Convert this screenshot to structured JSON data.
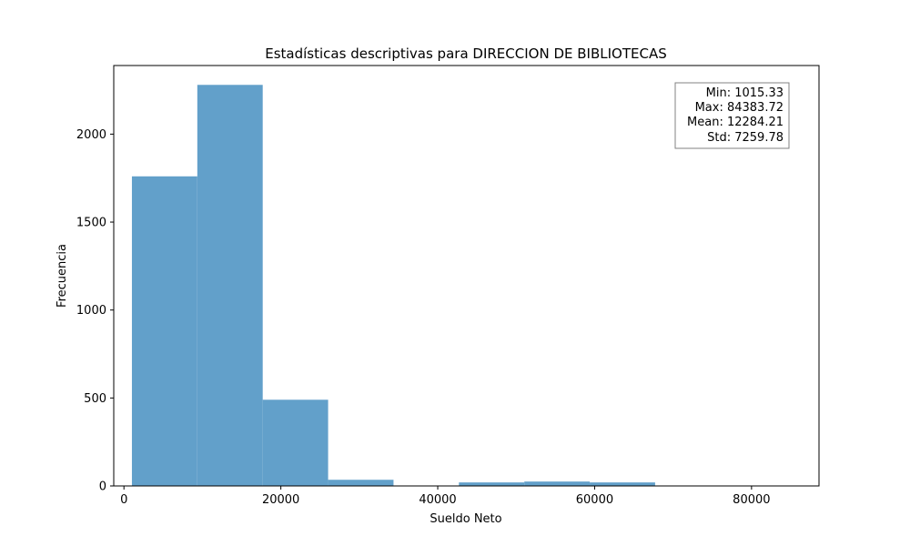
{
  "chart_data": {
    "type": "bar",
    "title": "Estadísticas descriptivas para DIRECCION DE BIBLIOTECAS",
    "xlabel": "Sueldo Neto",
    "ylabel": "Frecuencia",
    "xlim": [
      -1300,
      88600
    ],
    "ylim": [
      0,
      2390
    ],
    "xticks": [
      0,
      20000,
      40000,
      60000,
      80000
    ],
    "xtick_labels": [
      "0",
      "20000",
      "40000",
      "60000",
      "80000"
    ],
    "yticks": [
      0,
      500,
      1000,
      1500,
      2000
    ],
    "ytick_labels": [
      "0",
      "500",
      "1000",
      "1500",
      "2000"
    ],
    "bin_edges": [
      1015.33,
      9352.17,
      17689.01,
      26025.85,
      34362.69,
      42699.53,
      51036.37,
      59373.21,
      67710.05,
      76046.88,
      84383.72
    ],
    "values": [
      1760,
      2280,
      490,
      35,
      0,
      20,
      25,
      20,
      0,
      2
    ],
    "color": "#62a0ca",
    "grid": false,
    "stats_box": {
      "lines": [
        "Min: 1015.33",
        "Max: 84383.72",
        "Mean: 12284.21",
        "Std: 7259.78"
      ],
      "placement": "top-right"
    }
  }
}
